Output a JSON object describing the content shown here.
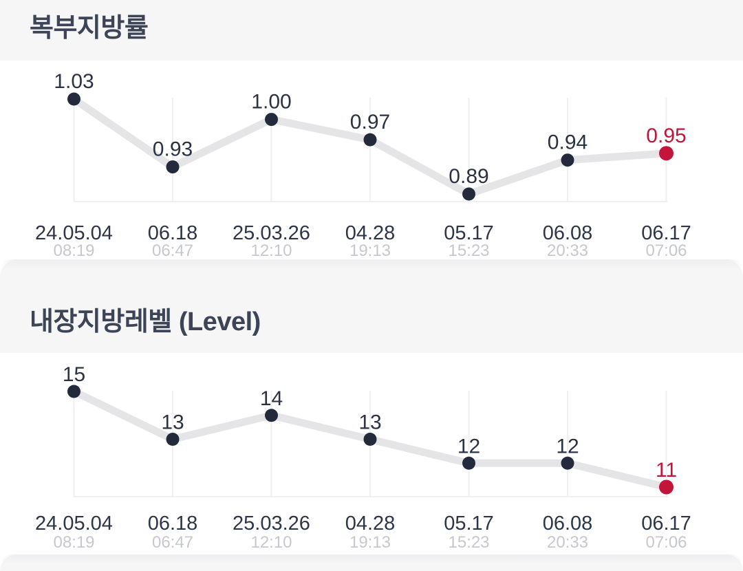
{
  "theme": {
    "band_bg": "#f6f6f7",
    "title_color": "#3d4456",
    "date_color": "#2e3547",
    "time_color": "#c6c8cd",
    "value_color": "#2b3243",
    "point_color": "#232a3b",
    "line_color": "#e5e5e7",
    "grid_color": "#eef0f2",
    "baseline_color": "#f0f0f2",
    "highlight_color": "#c3143a"
  },
  "chart_data": [
    {
      "type": "line",
      "title": "복부지방률",
      "categories": [
        "24.05.04",
        "06.18",
        "25.03.26",
        "04.28",
        "05.17",
        "06.08",
        "06.17"
      ],
      "category_times": [
        "08:19",
        "06:47",
        "12:10",
        "19:13",
        "15:23",
        "20:33",
        "07:06"
      ],
      "values": [
        1.03,
        0.93,
        1.0,
        0.97,
        0.89,
        0.94,
        0.95
      ],
      "value_labels": [
        "1.03",
        "0.93",
        "1.00",
        "0.97",
        "0.89",
        "0.94",
        "0.95"
      ],
      "highlight_last_index": 6,
      "ylim": [
        0.88,
        1.04
      ],
      "grid": "vertical-per-point",
      "legend": false,
      "xlabel": "",
      "ylabel": ""
    },
    {
      "type": "line",
      "title": "내장지방레벨 (Level)",
      "categories": [
        "24.05.04",
        "06.18",
        "25.03.26",
        "04.28",
        "05.17",
        "06.08",
        "06.17"
      ],
      "category_times": [
        "08:19",
        "06:47",
        "12:10",
        "19:13",
        "15:23",
        "20:33",
        "07:06"
      ],
      "values": [
        15,
        13,
        14,
        13,
        12,
        12,
        11
      ],
      "value_labels": [
        "15",
        "13",
        "14",
        "13",
        "12",
        "12",
        "11"
      ],
      "highlight_last_index": 6,
      "ylim": [
        10.5,
        15.5
      ],
      "grid": "vertical-per-point",
      "legend": false,
      "xlabel": "",
      "ylabel": ""
    }
  ]
}
